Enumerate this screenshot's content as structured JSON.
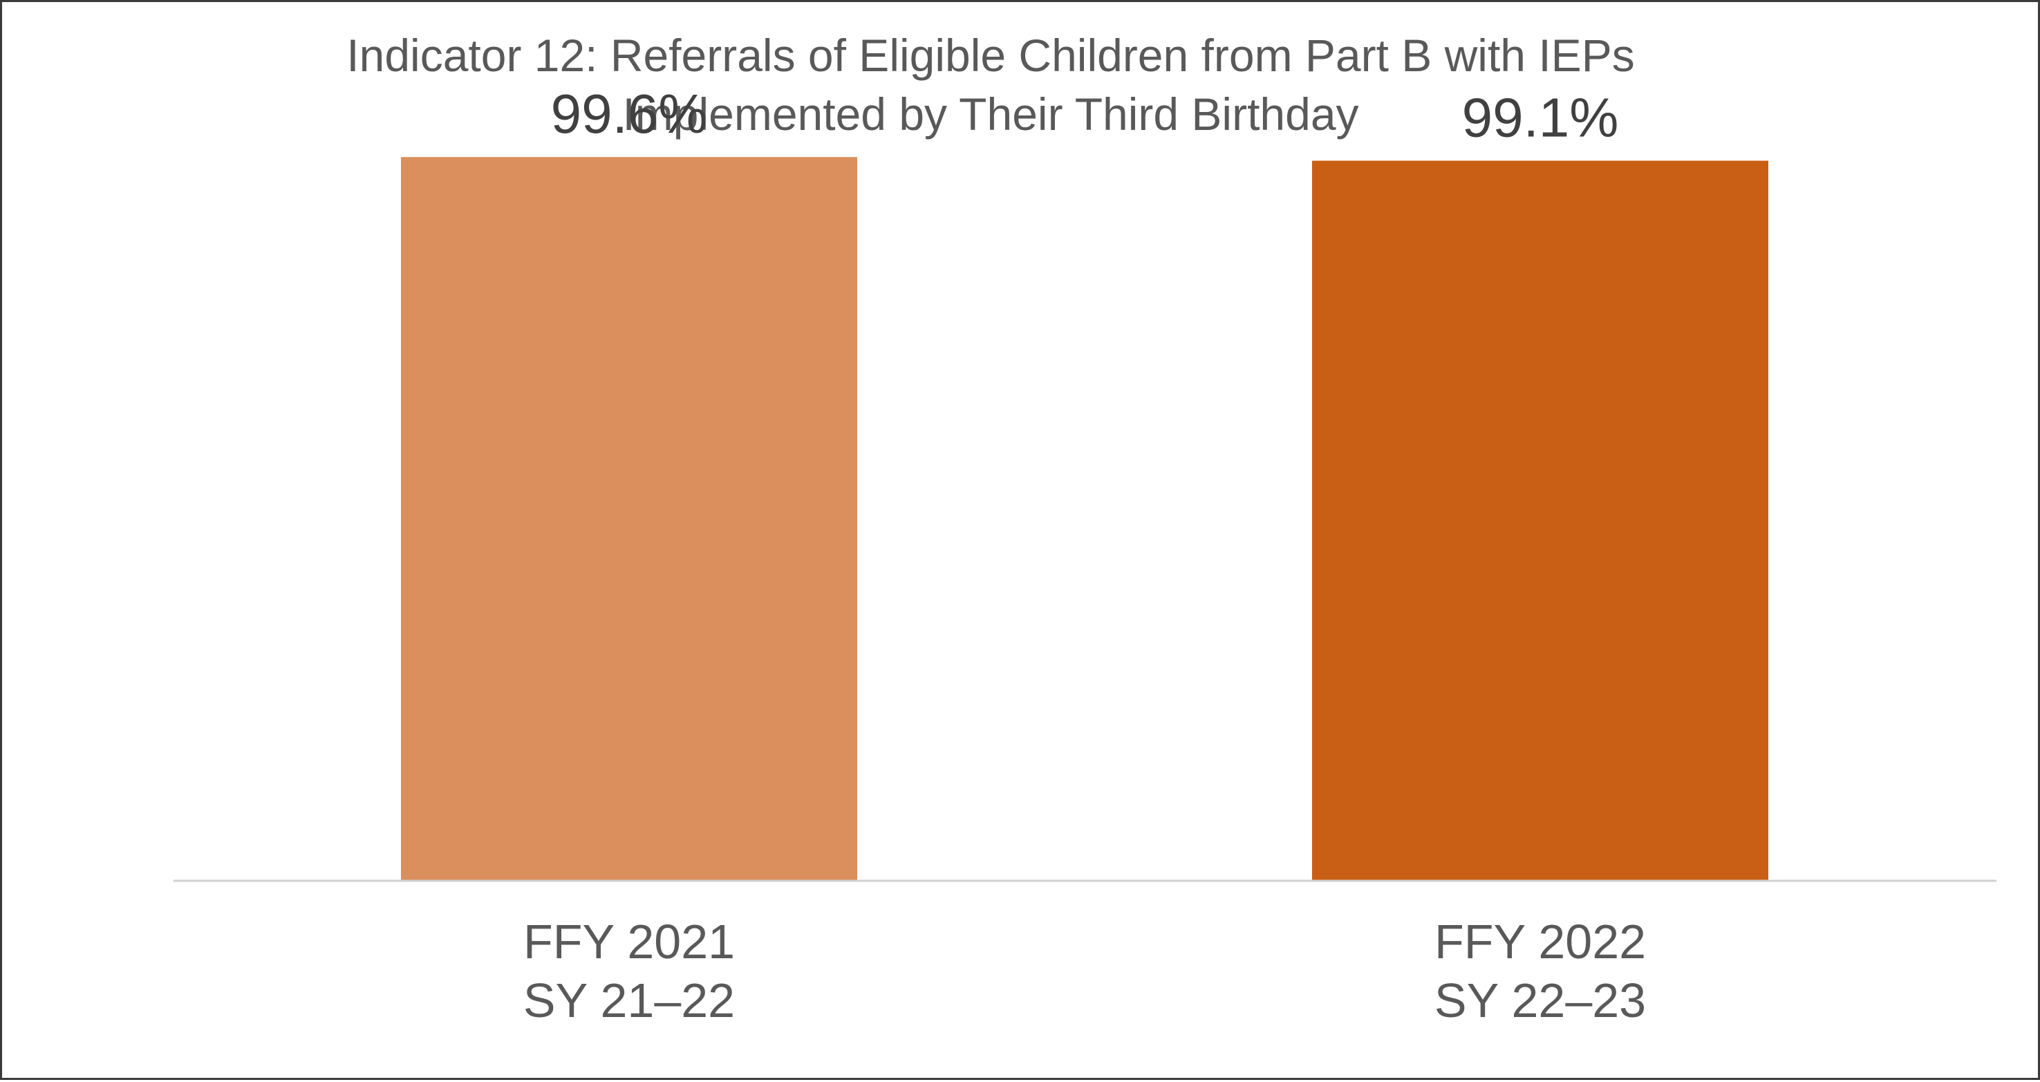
{
  "chart_data": {
    "type": "bar",
    "title_lines": [
      "Indicator 12: Referrals of Eligible Children from Part B with IEPs",
      "Implemented by Their Third Birthday"
    ],
    "categories": [
      [
        "FFY 2021",
        "SY 21–22"
      ],
      [
        "FFY 2022",
        "SY 22–23"
      ]
    ],
    "values": [
      99.6,
      99.1
    ],
    "data_labels": [
      "99.6%",
      "99.1%"
    ],
    "bar_colors": [
      "#DA8F5C",
      "#C95F15"
    ],
    "ylim": [
      0,
      100
    ],
    "grid": false,
    "legend": "none"
  }
}
